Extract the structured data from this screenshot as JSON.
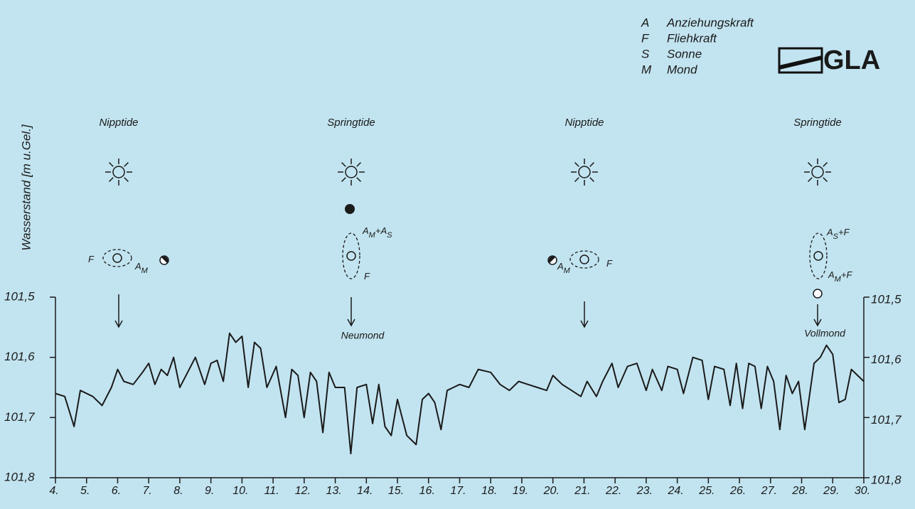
{
  "chart_data": {
    "type": "line",
    "y_label": "Wasserstand [m u.Gel.]",
    "color": "#1a1a1a",
    "xlim": [
      4,
      30
    ],
    "xticks": [
      {
        "value": 4,
        "label": "4."
      },
      {
        "value": 5,
        "label": "5."
      },
      {
        "value": 6,
        "label": "6."
      },
      {
        "value": 7,
        "label": "7."
      },
      {
        "value": 8,
        "label": "8."
      },
      {
        "value": 9,
        "label": "9."
      },
      {
        "value": 10,
        "label": "10."
      },
      {
        "value": 11,
        "label": "11."
      },
      {
        "value": 12,
        "label": "12."
      },
      {
        "value": 13,
        "label": "13."
      },
      {
        "value": 14,
        "label": "14."
      },
      {
        "value": 15,
        "label": "15."
      },
      {
        "value": 16,
        "label": "16."
      },
      {
        "value": 17,
        "label": "17."
      },
      {
        "value": 18,
        "label": "18."
      },
      {
        "value": 19,
        "label": "19."
      },
      {
        "value": 20,
        "label": "20."
      },
      {
        "value": 21,
        "label": "21."
      },
      {
        "value": 22,
        "label": "22."
      },
      {
        "value": 23,
        "label": "23."
      },
      {
        "value": 24,
        "label": "24."
      },
      {
        "value": 25,
        "label": "25."
      },
      {
        "value": 26,
        "label": "26."
      },
      {
        "value": 27,
        "label": "27."
      },
      {
        "value": 28,
        "label": "28."
      },
      {
        "value": 29,
        "label": "29."
      },
      {
        "value": 30,
        "label": "30."
      }
    ],
    "ylim": [
      101.5,
      101.8
    ],
    "y_inverted": true,
    "yticks": [
      {
        "value": 101.5,
        "label": "101,5"
      },
      {
        "value": 101.6,
        "label": "101,6"
      },
      {
        "value": 101.7,
        "label": "101,7"
      },
      {
        "value": 101.8,
        "label": "101,8"
      }
    ],
    "right_axis": true,
    "x": [
      4.0,
      4.3,
      4.6,
      4.8,
      5.2,
      5.5,
      5.8,
      6.0,
      6.2,
      6.5,
      6.8,
      7.0,
      7.2,
      7.4,
      7.6,
      7.8,
      8.0,
      8.2,
      8.5,
      8.8,
      9.0,
      9.2,
      9.4,
      9.6,
      9.8,
      10.0,
      10.2,
      10.4,
      10.6,
      10.8,
      11.1,
      11.4,
      11.6,
      11.8,
      12.0,
      12.2,
      12.4,
      12.6,
      12.8,
      13.0,
      13.3,
      13.5,
      13.7,
      14.0,
      14.2,
      14.4,
      14.6,
      14.8,
      15.0,
      15.3,
      15.6,
      15.8,
      16.0,
      16.2,
      16.4,
      16.6,
      17.0,
      17.3,
      17.6,
      18.0,
      18.3,
      18.6,
      18.9,
      19.2,
      19.5,
      19.8,
      20.0,
      20.3,
      20.6,
      20.9,
      21.1,
      21.4,
      21.6,
      21.9,
      22.1,
      22.4,
      22.7,
      23.0,
      23.2,
      23.5,
      23.7,
      24.0,
      24.2,
      24.5,
      24.8,
      25.0,
      25.2,
      25.5,
      25.7,
      25.9,
      26.1,
      26.3,
      26.5,
      26.7,
      26.9,
      27.1,
      27.3,
      27.5,
      27.7,
      27.9,
      28.1,
      28.4,
      28.6,
      28.8,
      29.0,
      29.2,
      29.4,
      29.6,
      29.8,
      30.0
    ],
    "values": [
      101.66,
      101.665,
      101.715,
      101.655,
      101.665,
      101.68,
      101.65,
      101.62,
      101.64,
      101.645,
      101.625,
      101.61,
      101.645,
      101.62,
      101.63,
      101.6,
      101.65,
      101.63,
      101.6,
      101.645,
      101.61,
      101.605,
      101.64,
      101.56,
      101.575,
      101.565,
      101.65,
      101.575,
      101.585,
      101.65,
      101.615,
      101.7,
      101.62,
      101.63,
      101.7,
      101.625,
      101.64,
      101.725,
      101.625,
      101.65,
      101.65,
      101.76,
      101.65,
      101.645,
      101.71,
      101.645,
      101.715,
      101.73,
      101.67,
      101.73,
      101.745,
      101.67,
      101.66,
      101.675,
      101.72,
      101.655,
      101.645,
      101.65,
      101.62,
      101.625,
      101.645,
      101.655,
      101.64,
      101.645,
      101.65,
      101.655,
      101.63,
      101.645,
      101.655,
      101.665,
      101.64,
      101.665,
      101.64,
      101.61,
      101.65,
      101.615,
      101.61,
      101.655,
      101.62,
      101.655,
      101.615,
      101.62,
      101.66,
      101.6,
      101.605,
      101.67,
      101.615,
      101.62,
      101.68,
      101.61,
      101.685,
      101.61,
      101.615,
      101.685,
      101.615,
      101.64,
      101.72,
      101.63,
      101.66,
      101.64,
      101.72,
      101.61,
      101.6,
      101.58,
      101.595,
      101.675,
      101.67,
      101.62,
      101.63,
      101.64
    ],
    "legend": [
      {
        "key": "A",
        "text": "Anziehungskraft"
      },
      {
        "key": "F",
        "text": "Fliehkraft"
      },
      {
        "key": "S",
        "text": "Sonne"
      },
      {
        "key": "M",
        "text": "Mond"
      }
    ],
    "logo": "GLA",
    "events": [
      {
        "label": "Nipptide",
        "forces": [
          "F",
          "AM"
        ]
      },
      {
        "label": "Springtide",
        "forces": [
          "AM+AS",
          "F"
        ],
        "moon": "Neumond"
      },
      {
        "label": "Nipptide",
        "forces": [
          "AM",
          "F"
        ]
      },
      {
        "label": "Springtide",
        "forces": [
          "AS+F",
          "AM+F"
        ],
        "moon": "Vollmond"
      }
    ]
  }
}
